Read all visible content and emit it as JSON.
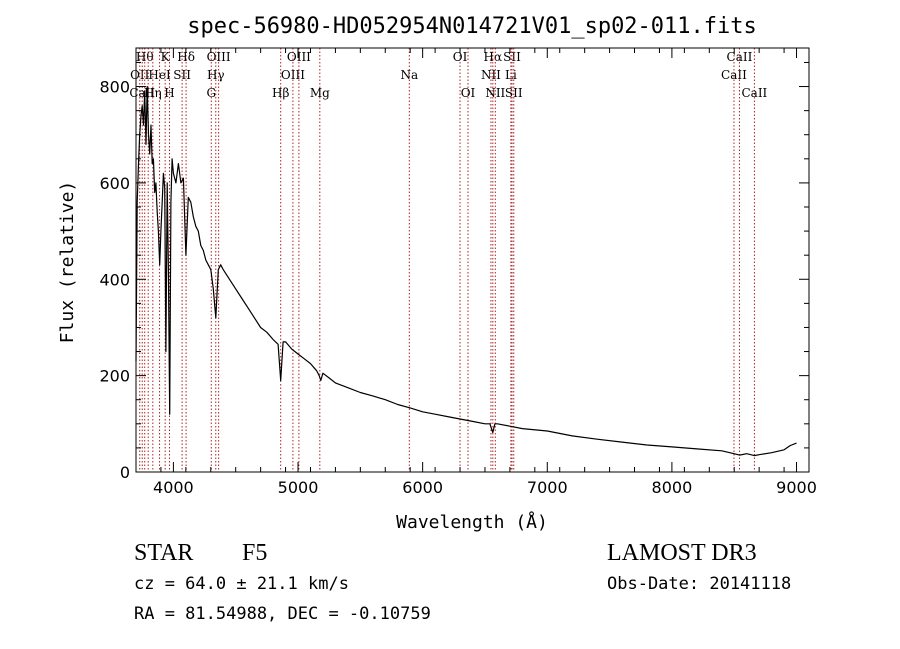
{
  "chart_data": {
    "type": "line",
    "title": "spec-56980-HD052954N014721V01_sp02-011.fits",
    "xlabel": "Wavelength (Å)",
    "ylabel": "Flux (relative)",
    "xlim": [
      3700,
      9100
    ],
    "ylim": [
      0,
      880
    ],
    "xticks": [
      4000,
      5000,
      6000,
      7000,
      8000,
      9000
    ],
    "yticks": [
      0,
      200,
      400,
      600,
      800
    ],
    "grid": false,
    "line_color": "#000000",
    "marker_color": "#b22222",
    "series": [
      {
        "name": "spectrum",
        "x": [
          3700,
          3710,
          3720,
          3730,
          3740,
          3750,
          3760,
          3770,
          3780,
          3790,
          3800,
          3810,
          3820,
          3830,
          3840,
          3850,
          3860,
          3870,
          3880,
          3890,
          3900,
          3910,
          3920,
          3930,
          3940,
          3950,
          3960,
          3970,
          3980,
          3990,
          4000,
          4020,
          4040,
          4060,
          4080,
          4100,
          4120,
          4140,
          4160,
          4180,
          4200,
          4220,
          4240,
          4260,
          4280,
          4300,
          4320,
          4340,
          4360,
          4380,
          4400,
          4450,
          4500,
          4550,
          4600,
          4650,
          4700,
          4750,
          4800,
          4840,
          4861,
          4880,
          4900,
          4950,
          5000,
          5050,
          5100,
          5150,
          5170,
          5183,
          5200,
          5250,
          5300,
          5400,
          5500,
          5600,
          5700,
          5800,
          5900,
          6000,
          6100,
          6200,
          6300,
          6400,
          6500,
          6540,
          6563,
          6580,
          6600,
          6700,
          6800,
          7000,
          7200,
          7400,
          7600,
          7800,
          8000,
          8200,
          8400,
          8498,
          8542,
          8600,
          8662,
          8700,
          8800,
          8900,
          8950,
          9000
        ],
        "values": [
          230,
          560,
          640,
          700,
          740,
          760,
          720,
          790,
          680,
          800,
          700,
          660,
          720,
          640,
          650,
          580,
          600,
          540,
          500,
          430,
          500,
          560,
          620,
          590,
          250,
          600,
          420,
          120,
          560,
          650,
          620,
          600,
          640,
          600,
          610,
          450,
          570,
          560,
          530,
          510,
          500,
          470,
          460,
          440,
          430,
          420,
          380,
          320,
          420,
          430,
          420,
          400,
          380,
          360,
          340,
          320,
          300,
          290,
          275,
          265,
          190,
          270,
          270,
          255,
          245,
          235,
          225,
          210,
          200,
          190,
          205,
          195,
          185,
          175,
          165,
          158,
          150,
          140,
          133,
          125,
          120,
          115,
          110,
          105,
          100,
          100,
          82,
          100,
          100,
          95,
          90,
          85,
          75,
          68,
          62,
          56,
          52,
          48,
          44,
          38,
          35,
          38,
          34,
          36,
          40,
          46,
          55,
          60
        ]
      }
    ],
    "line_markers": [
      {
        "wl": 3730,
        "labels": [
          "OII"
        ],
        "row": 1
      },
      {
        "wl": 3750,
        "labels": [
          "CaII"
        ],
        "row": 2
      },
      {
        "wl": 3770,
        "labels": [
          "Hθ"
        ],
        "row": 0
      },
      {
        "wl": 3798,
        "labels": [],
        "row": 0
      },
      {
        "wl": 3835,
        "labels": [
          "Hη"
        ],
        "row": 2
      },
      {
        "wl": 3889,
        "labels": [
          "HeI"
        ],
        "row": 1
      },
      {
        "wl": 3934,
        "labels": [
          "K"
        ],
        "row": 0
      },
      {
        "wl": 3969,
        "labels": [
          "H"
        ],
        "row": 2
      },
      {
        "wl": 4070,
        "labels": [
          "SII"
        ],
        "row": 1
      },
      {
        "wl": 4102,
        "labels": [
          "Hδ"
        ],
        "row": 0
      },
      {
        "wl": 4304,
        "labels": [
          "G"
        ],
        "row": 2
      },
      {
        "wl": 4340,
        "labels": [
          "Hγ"
        ],
        "row": 1
      },
      {
        "wl": 4363,
        "labels": [
          "OIII"
        ],
        "row": 0
      },
      {
        "wl": 4861,
        "labels": [
          "Hβ"
        ],
        "row": 2
      },
      {
        "wl": 4959,
        "labels": [
          "OIII"
        ],
        "row": 1
      },
      {
        "wl": 5007,
        "labels": [
          "OIII"
        ],
        "row": 0
      },
      {
        "wl": 5175,
        "labels": [
          "Mg"
        ],
        "row": 2
      },
      {
        "wl": 5893,
        "labels": [
          "Na"
        ],
        "row": 1
      },
      {
        "wl": 6300,
        "labels": [
          "OI"
        ],
        "row": 0
      },
      {
        "wl": 6364,
        "labels": [
          "OI"
        ],
        "row": 2
      },
      {
        "wl": 6548,
        "labels": [
          "NII"
        ],
        "row": 1
      },
      {
        "wl": 6563,
        "labels": [
          "Hα"
        ],
        "row": 0
      },
      {
        "wl": 6583,
        "labels": [
          "NII"
        ],
        "row": 2
      },
      {
        "wl": 6708,
        "labels": [
          "Li"
        ],
        "row": 1
      },
      {
        "wl": 6717,
        "labels": [
          "SII"
        ],
        "row": 0
      },
      {
        "wl": 6731,
        "labels": [
          "SII"
        ],
        "row": 2
      },
      {
        "wl": 8498,
        "labels": [
          "CaII"
        ],
        "row": 1
      },
      {
        "wl": 8542,
        "labels": [
          "CaII"
        ],
        "row": 0
      },
      {
        "wl": 8662,
        "labels": [
          "CaII"
        ],
        "row": 2
      }
    ]
  },
  "info": {
    "object_class": "STAR",
    "subclass": "F5",
    "survey": "LAMOST DR3",
    "cz": "cz = 64.0 ± 21.1 km/s",
    "obs_date": "Obs-Date: 20141118",
    "coords": "RA =  81.54988, DEC =  -0.10759"
  }
}
